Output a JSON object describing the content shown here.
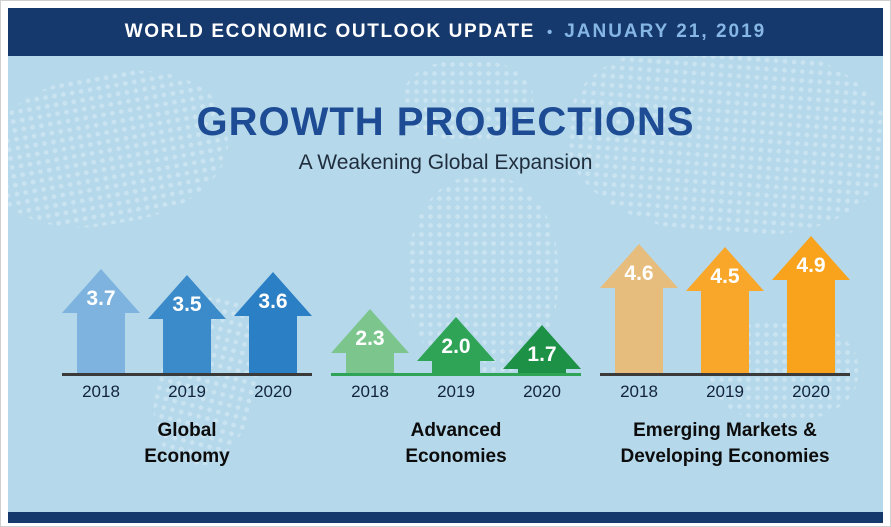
{
  "banner": {
    "title": "WORLD ECONOMIC OUTLOOK UPDATE",
    "separator": "•",
    "date": "JANUARY 21, 2019"
  },
  "header": {
    "title": "GROWTH PROJECTIONS",
    "subtitle": "A Weakening Global Expansion"
  },
  "chart_data": {
    "type": "bar",
    "title": "GROWTH PROJECTIONS",
    "subtitle": "A Weakening Global Expansion",
    "categories": [
      "2018",
      "2019",
      "2020"
    ],
    "ylim": [
      0,
      5
    ],
    "legend": "none",
    "grid": false,
    "groups": [
      {
        "label": "Global Economy",
        "label_lines": [
          "Global",
          "Economy"
        ],
        "values": [
          3.7,
          3.5,
          3.6
        ],
        "colors": [
          "#7db3de",
          "#3b8ac9",
          "#2b7fc4"
        ],
        "baseline_color": "#3a3a3a"
      },
      {
        "label": "Advanced Economies",
        "label_lines": [
          "Advanced",
          "Economies"
        ],
        "values": [
          2.3,
          2.0,
          1.7
        ],
        "colors": [
          "#7cc68e",
          "#2fa457",
          "#1d9145"
        ],
        "baseline_color": "#2fa457"
      },
      {
        "label": "Emerging Markets & Developing Economies",
        "label_lines": [
          "Emerging Markets &",
          "Developing Economies"
        ],
        "values": [
          4.6,
          4.5,
          4.9
        ],
        "colors": [
          "#e7bd7d",
          "#f9a72b",
          "#f9a21b"
        ],
        "baseline_color": "#3a3a3a"
      }
    ]
  },
  "colors": {
    "banner_bg": "#16396d",
    "background": "#b5d8ea",
    "title_blue": "#1d4b94",
    "value_text": "#ffffff"
  }
}
